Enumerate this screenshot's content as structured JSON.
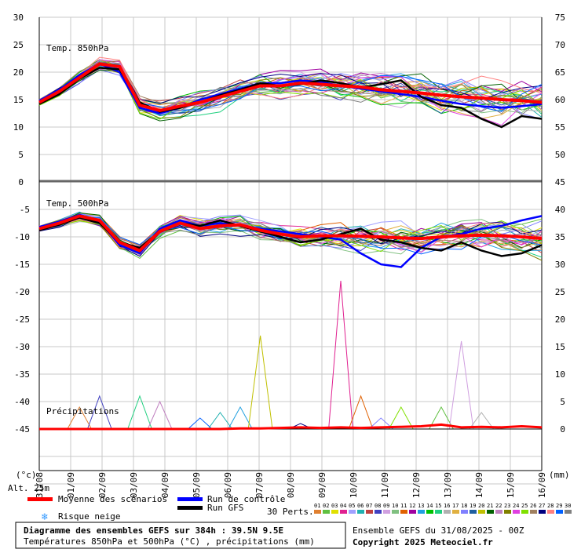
{
  "chart_data": {
    "type": "line",
    "x_dates": [
      "31/08",
      "01/09",
      "02/09",
      "03/09",
      "04/09",
      "05/09",
      "06/09",
      "07/09",
      "08/09",
      "09/09",
      "10/09",
      "11/09",
      "12/09",
      "13/09",
      "14/09",
      "15/09",
      "16/09"
    ],
    "x_axis_units": "(mm)",
    "x_axis_left_units": "(°c)",
    "upper_panel": {
      "title": "Temp. 850hPa",
      "left_ticks": [
        30,
        25,
        20,
        15,
        10,
        5,
        0
      ],
      "right_ticks": [
        75,
        70,
        65,
        60,
        55,
        50,
        45
      ],
      "mean": [
        14.5,
        16.5,
        19,
        21.5,
        21,
        14,
        13,
        13.8,
        14.5,
        15.5,
        16.5,
        17.5,
        17.5,
        18,
        17.8,
        17.5,
        17.3,
        16.8,
        16.5,
        16.2,
        15.8,
        15.5,
        15.3,
        15,
        14.8,
        14.5
      ],
      "control": [
        14.8,
        16.8,
        19.5,
        21.5,
        20,
        13.5,
        12.5,
        13.5,
        15,
        16,
        17,
        18,
        18,
        18.5,
        18.2,
        17.5,
        17,
        16.5,
        16,
        15.5,
        14.8,
        14.2,
        13.8,
        13.5,
        13.8,
        14.2
      ],
      "gfs": [
        14.2,
        16,
        18.8,
        20.8,
        20.5,
        14.5,
        12.8,
        13.5,
        14.5,
        15.8,
        16.8,
        18,
        17.5,
        17.8,
        18.5,
        18,
        17.2,
        17.8,
        18.5,
        15.5,
        14,
        13.5,
        11.5,
        10,
        12,
        11.5
      ]
    },
    "lower_panel": {
      "title": "Temp. 500hPa",
      "left_ticks": [
        -5,
        -10,
        -15,
        -20,
        -25,
        -30,
        -35,
        -40,
        -45
      ],
      "right_ticks": [
        40,
        35,
        30,
        25,
        20,
        15,
        10,
        5,
        0
      ],
      "mean": [
        -8.5,
        -7.5,
        -6.2,
        -7,
        -11,
        -12.5,
        -9,
        -7.5,
        -8.5,
        -8,
        -7.8,
        -8.8,
        -9.5,
        -10,
        -9.8,
        -9.8,
        -9.9,
        -10,
        -10.2,
        -10.3,
        -10,
        -9.8,
        -9.7,
        -9.8,
        -10,
        -10.3
      ],
      "control": [
        -8.2,
        -7.2,
        -6,
        -7.2,
        -11.5,
        -13,
        -8.5,
        -7,
        -8,
        -7.5,
        -8,
        -8.5,
        -9,
        -9.5,
        -10,
        -10.5,
        -13,
        -15,
        -15.5,
        -12,
        -10,
        -9.5,
        -8.5,
        -8,
        -7,
        -6.2
      ],
      "gfs": [
        -8.8,
        -7.8,
        -6.5,
        -7.5,
        -11,
        -12,
        -9,
        -7.5,
        -8,
        -7,
        -8,
        -9,
        -10,
        -11,
        -10.5,
        -9.5,
        -8.5,
        -10.5,
        -11,
        -12,
        -12.5,
        -11,
        -12.5,
        -13.5,
        -13,
        -11.5
      ]
    },
    "precip_panel": {
      "title": "Précipitations",
      "mean": [
        0,
        0,
        0,
        0,
        0,
        0,
        0,
        0,
        0,
        0,
        0.1,
        0.1,
        0.2,
        0.3,
        0.2,
        0.3,
        0.2,
        0.3,
        0.4,
        0.5,
        0.8,
        0.3,
        0.4,
        0.3,
        0.5,
        0.3
      ],
      "spike_values": [
        4,
        6,
        6,
        5,
        2,
        3,
        4,
        17,
        1,
        27,
        6,
        2,
        4,
        4,
        16,
        3
      ]
    }
  },
  "labels": {
    "alt": "Alt. 25m",
    "perts": "30 Perts.",
    "legend_mean": "Moyenne des scénarios",
    "legend_control": "Run de contrôle",
    "legend_gfs": "Run GFS",
    "legend_snow": "Risque neige",
    "snow_icon": "snowflake-icon",
    "footer_title": "Diagramme des ensembles GEFS sur 384h : 39.5N 9.5E",
    "footer_sub": "Températures 850hPa et 500hPa (°C) , précipitations (mm)",
    "footer_run": "Ensemble GEFS du 31/08/2025 - 00Z",
    "footer_copy": "Copyright 2025 Meteociel.fr"
  },
  "pert_labels": [
    "01",
    "02",
    "03",
    "04",
    "05",
    "06",
    "07",
    "08",
    "09",
    "10",
    "11",
    "12",
    "13",
    "14",
    "15",
    "16",
    "17",
    "18",
    "19",
    "20",
    "21",
    "22",
    "23",
    "24",
    "25",
    "26",
    "27",
    "28",
    "29",
    "30"
  ],
  "colors": {
    "mean": "#ff0000",
    "control": "#0000ff",
    "gfs": "#000000",
    "grid": "#c8c8c8",
    "separator": "#666666",
    "perts": [
      "#e08030",
      "#60c040",
      "#e0e000",
      "#e02090",
      "#a0a0ff",
      "#20b0b0",
      "#c04040",
      "#4040c0",
      "#d0a0e0",
      "#80c080",
      "#e06000",
      "#a000a0",
      "#20a0e0",
      "#00c000",
      "#20d080",
      "#b0b0b0",
      "#e0b040",
      "#8080ff",
      "#2060a0",
      "#c0c000",
      "#006000",
      "#c080c0",
      "#808000",
      "#e040e0",
      "#80e000",
      "#a08060",
      "#000080",
      "#ff8080",
      "#0060ff",
      "#808080"
    ]
  }
}
